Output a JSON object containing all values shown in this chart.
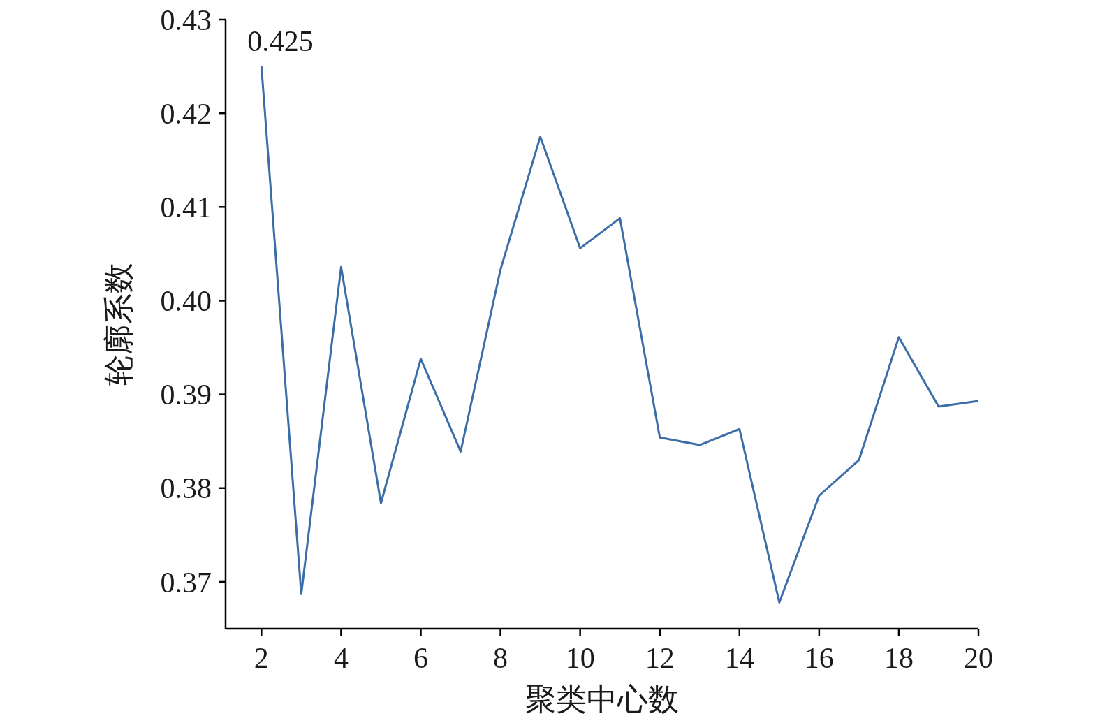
{
  "chart_data": {
    "type": "line",
    "xlabel": "聚类中心数",
    "ylabel": "轮廓系数",
    "x": [
      2,
      3,
      4,
      5,
      6,
      7,
      8,
      9,
      10,
      11,
      12,
      13,
      14,
      15,
      16,
      17,
      18,
      19,
      20
    ],
    "series": [
      {
        "color": "#3b6ea8",
        "values": [
          0.425,
          0.3687,
          0.4036,
          0.3784,
          0.3938,
          0.3839,
          0.4033,
          0.4175,
          0.4056,
          0.4088,
          0.3854,
          0.3846,
          0.3863,
          0.3678,
          0.3792,
          0.383,
          0.3961,
          0.3887,
          0.3893
        ]
      }
    ],
    "xlim": [
      1.1,
      20
    ],
    "xticks": [
      2,
      4,
      6,
      8,
      10,
      12,
      14,
      16,
      18,
      20
    ],
    "ylim": [
      0.365,
      0.43
    ],
    "yticks": [
      0.37,
      0.38,
      0.39,
      {
        "value": 0.4,
        "label": "0.40"
      },
      0.41,
      0.42,
      0.43
    ],
    "annotations": [
      {
        "text": "0.425",
        "x": 2,
        "y": 0.425
      }
    ],
    "grid": false,
    "marker": "none",
    "line_style": "solid"
  }
}
